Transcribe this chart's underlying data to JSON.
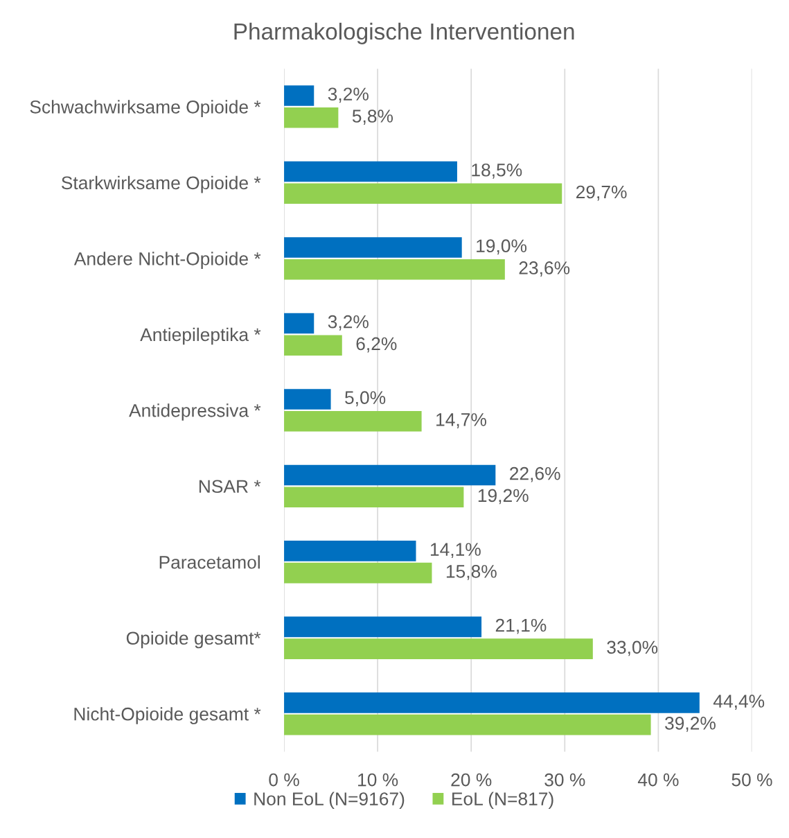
{
  "chart_data": {
    "type": "bar",
    "orientation": "horizontal",
    "title": "Pharmakologische Interventionen",
    "categories": [
      "Schwachwirksame Opioide *",
      "Starkwirksame Opioide *",
      "Andere Nicht-Opioide *",
      "Antiepileptika *",
      "Antidepressiva *",
      "NSAR *",
      "Paracetamol",
      "Opioide gesamt*",
      "Nicht-Opioide gesamt *"
    ],
    "series": [
      {
        "name": "Non EoL (N=9167)",
        "color": "#0070c0",
        "values": [
          3.2,
          18.5,
          19.0,
          3.2,
          5.0,
          22.6,
          14.1,
          21.1,
          44.4
        ],
        "value_labels": [
          "3,2%",
          "18,5%",
          "19,0%",
          "3,2%",
          "5,0%",
          "22,6%",
          "14,1%",
          "21,1%",
          "44,4%"
        ]
      },
      {
        "name": "EoL (N=817)",
        "color": "#92d050",
        "values": [
          5.8,
          29.7,
          23.6,
          6.2,
          14.7,
          19.2,
          15.8,
          33.0,
          39.2
        ],
        "value_labels": [
          "5,8%",
          "29,7%",
          "23,6%",
          "6,2%",
          "14,7%",
          "19,2%",
          "15,8%",
          "33,0%",
          "39,2%"
        ]
      }
    ],
    "xlim": [
      0,
      50
    ],
    "xticks": [
      {
        "value": 0,
        "label": "0 %"
      },
      {
        "value": 10,
        "label": "10 %"
      },
      {
        "value": 20,
        "label": "20 %"
      },
      {
        "value": 30,
        "label": "30 %"
      },
      {
        "value": 40,
        "label": "40 %"
      },
      {
        "value": 50,
        "label": "50 %"
      }
    ],
    "grid": "x",
    "legend": "bottom"
  }
}
